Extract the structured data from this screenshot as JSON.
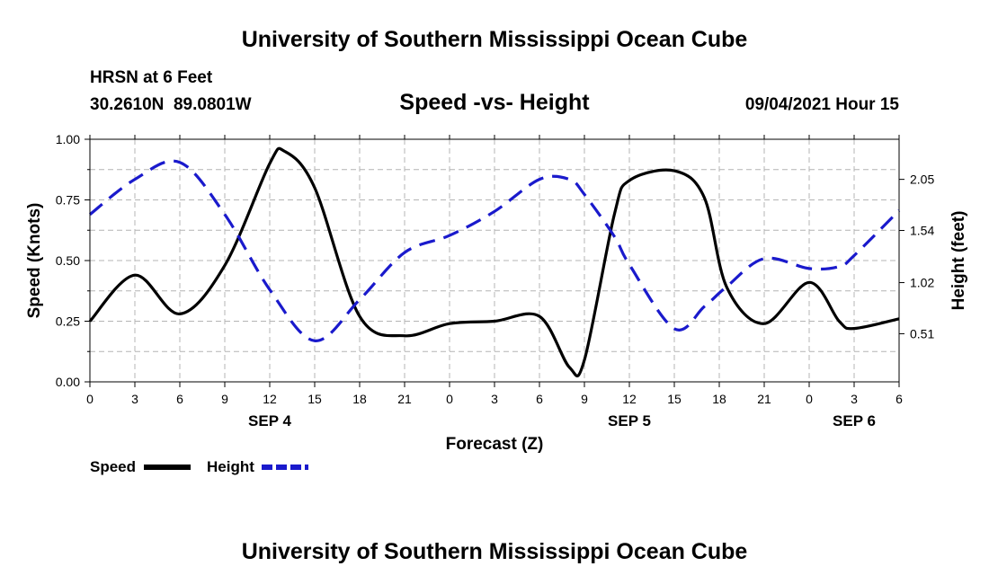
{
  "header": {
    "title": "University of Southern Mississippi Ocean Cube",
    "station": "HRSN at 6 Feet",
    "coords": "30.2610N  89.0801W",
    "plot_title": "Speed -vs- Height",
    "timestamp": "09/04/2021 Hour 15"
  },
  "footer": {
    "title": "University of Southern Mississippi Ocean Cube"
  },
  "legend": {
    "items": [
      {
        "label": "Speed",
        "color": "#000000",
        "dash": "solid"
      },
      {
        "label": "Height",
        "color": "#1a1acc",
        "dash": "dashed"
      }
    ]
  },
  "chart_data": {
    "type": "line",
    "xlabel": "Forecast (Z)",
    "ylabel_left": "Speed (Knots)",
    "ylabel_right": "Height (feet)",
    "x_tick_labels": [
      "0",
      "3",
      "6",
      "9",
      "12",
      "15",
      "18",
      "21",
      "0",
      "3",
      "6",
      "9",
      "12",
      "15",
      "18",
      "21",
      "0",
      "3",
      "6"
    ],
    "date_labels": [
      {
        "hour": 12,
        "label": "SEP 4"
      },
      {
        "hour": 36,
        "label": "SEP 5"
      },
      {
        "hour": 51,
        "label": "SEP 6"
      }
    ],
    "xlim": [
      0,
      54
    ],
    "ylim_left": [
      0,
      1
    ],
    "ylim_right": [
      0.03,
      2.45
    ],
    "left_ticks": [
      {
        "value": 0.0,
        "label": "0.00"
      },
      {
        "value": 0.25,
        "label": "0.25"
      },
      {
        "value": 0.5,
        "label": "0.50"
      },
      {
        "value": 0.75,
        "label": "0.75"
      },
      {
        "value": 1.0,
        "label": "1.00"
      }
    ],
    "right_ticks": [
      {
        "value": 0.51,
        "label": "0.51"
      },
      {
        "value": 1.02,
        "label": "1.02"
      },
      {
        "value": 1.54,
        "label": "1.54"
      },
      {
        "value": 2.05,
        "label": "2.05"
      }
    ],
    "grid": true,
    "series": [
      {
        "name": "Speed",
        "axis": "left",
        "color": "#000000",
        "dash": "solid",
        "x": [
          0,
          3,
          6,
          9,
          12,
          13,
          15,
          18,
          21,
          24,
          27,
          30,
          32,
          33,
          35,
          36,
          39,
          41,
          42.5,
          45,
          48,
          50,
          51,
          54
        ],
        "y": [
          0.25,
          0.44,
          0.28,
          0.48,
          0.9,
          0.95,
          0.8,
          0.27,
          0.19,
          0.24,
          0.25,
          0.27,
          0.06,
          0.09,
          0.69,
          0.83,
          0.87,
          0.76,
          0.39,
          0.24,
          0.41,
          0.25,
          0.22,
          0.26
        ]
      },
      {
        "name": "Height",
        "axis": "right",
        "color": "#1a1acc",
        "dash": "dashed",
        "x": [
          0,
          3,
          6,
          9,
          12,
          15,
          18,
          21,
          24,
          27,
          30,
          32,
          33,
          35,
          36,
          39,
          41,
          42.5,
          45,
          48,
          50,
          51,
          54
        ],
        "y": [
          1.7,
          2.05,
          2.22,
          1.7,
          0.95,
          0.44,
          0.85,
          1.32,
          1.49,
          1.73,
          2.05,
          2.05,
          1.9,
          1.48,
          1.2,
          0.56,
          0.78,
          0.98,
          1.26,
          1.16,
          1.18,
          1.29,
          1.74
        ]
      }
    ]
  }
}
